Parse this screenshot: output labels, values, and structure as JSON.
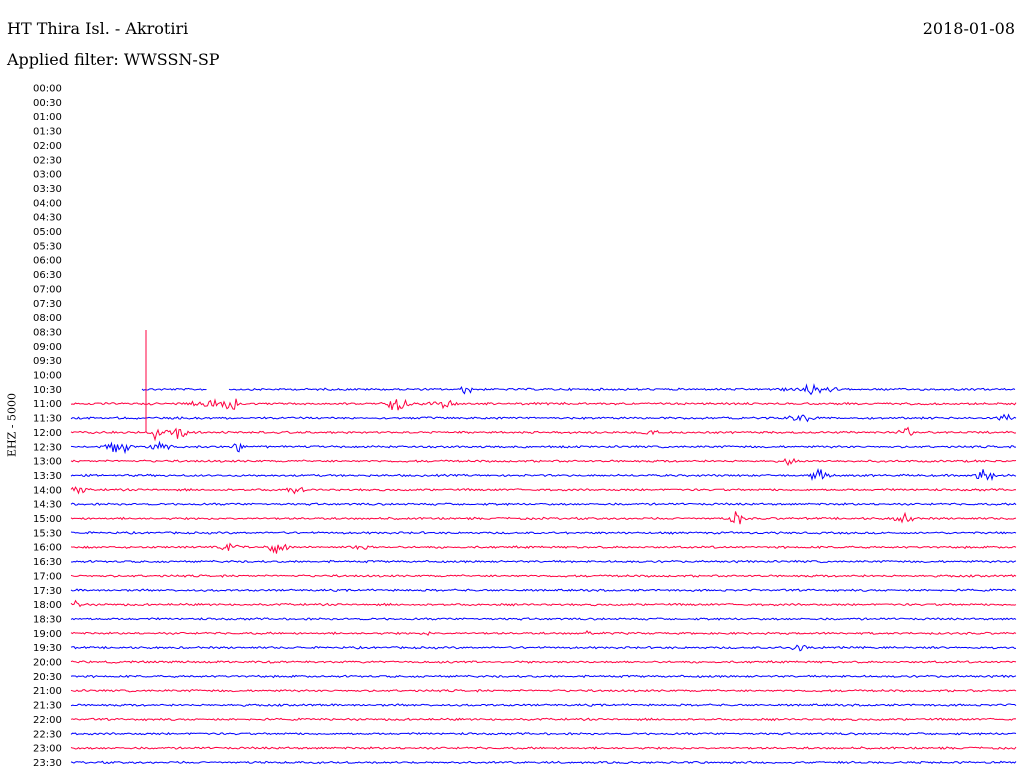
{
  "header": {
    "title": "HT Thira Isl. - Akrotiri",
    "date": "2018-01-08",
    "filter": "Applied filter: WWSSN-SP",
    "channel": "EHZ - 5000"
  },
  "colors": {
    "even_row": "#ff0040",
    "odd_row": "#0000ff"
  },
  "chart_data": {
    "type": "line",
    "title": "HT Thira Isl. - Akrotiri",
    "ylabel": "EHZ - 5000",
    "rows": [
      {
        "time": "00:00",
        "has_data": false
      },
      {
        "time": "00:30",
        "has_data": false
      },
      {
        "time": "01:00",
        "has_data": false
      },
      {
        "time": "01:30",
        "has_data": false
      },
      {
        "time": "02:00",
        "has_data": false
      },
      {
        "time": "02:30",
        "has_data": false
      },
      {
        "time": "03:00",
        "has_data": false
      },
      {
        "time": "03:30",
        "has_data": false
      },
      {
        "time": "04:00",
        "has_data": false
      },
      {
        "time": "04:30",
        "has_data": false
      },
      {
        "time": "05:00",
        "has_data": false
      },
      {
        "time": "05:30",
        "has_data": false
      },
      {
        "time": "06:00",
        "has_data": false
      },
      {
        "time": "06:30",
        "has_data": false
      },
      {
        "time": "07:00",
        "has_data": false
      },
      {
        "time": "07:30",
        "has_data": false
      },
      {
        "time": "08:00",
        "has_data": false
      },
      {
        "time": "08:30",
        "has_data": false
      },
      {
        "time": "09:00",
        "has_data": false
      },
      {
        "time": "09:30",
        "has_data": false
      },
      {
        "time": "10:00",
        "has_data": false
      },
      {
        "time": "10:30",
        "has_data": true
      },
      {
        "time": "11:00",
        "has_data": true
      },
      {
        "time": "11:30",
        "has_data": true
      },
      {
        "time": "12:00",
        "has_data": true
      },
      {
        "time": "12:30",
        "has_data": true
      },
      {
        "time": "13:00",
        "has_data": true
      },
      {
        "time": "13:30",
        "has_data": true
      },
      {
        "time": "14:00",
        "has_data": true
      },
      {
        "time": "14:30",
        "has_data": true
      },
      {
        "time": "15:00",
        "has_data": true
      },
      {
        "time": "15:30",
        "has_data": true
      },
      {
        "time": "16:00",
        "has_data": true
      },
      {
        "time": "16:30",
        "has_data": true
      },
      {
        "time": "17:00",
        "has_data": true
      },
      {
        "time": "17:30",
        "has_data": true
      },
      {
        "time": "18:00",
        "has_data": true
      },
      {
        "time": "18:30",
        "has_data": true
      },
      {
        "time": "19:00",
        "has_data": true
      },
      {
        "time": "19:30",
        "has_data": true
      },
      {
        "time": "20:00",
        "has_data": true
      },
      {
        "time": "20:30",
        "has_data": true
      },
      {
        "time": "21:00",
        "has_data": true
      },
      {
        "time": "21:30",
        "has_data": true
      },
      {
        "time": "22:00",
        "has_data": true
      },
      {
        "time": "22:30",
        "has_data": true
      },
      {
        "time": "23:00",
        "has_data": true
      },
      {
        "time": "23:30",
        "has_data": true
      }
    ]
  }
}
